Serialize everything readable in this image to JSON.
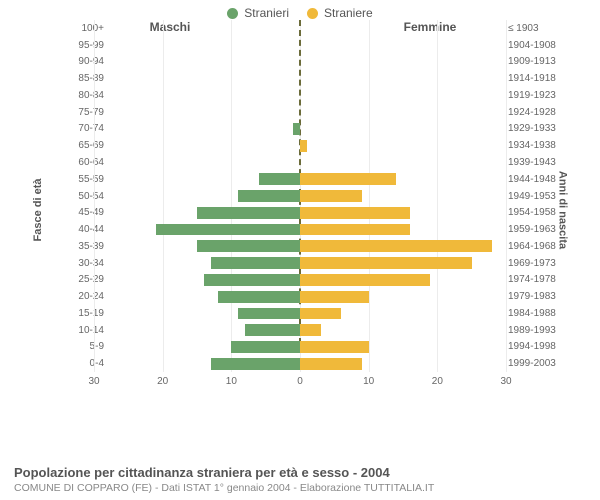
{
  "chart": {
    "type": "population-pyramid",
    "legend": [
      {
        "label": "Stranieri",
        "color": "#6aa36a"
      },
      {
        "label": "Straniere",
        "color": "#f0b93a"
      }
    ],
    "panel_title_left": "Maschi",
    "panel_title_right": "Femmine",
    "y_axis_title_left": "Fasce di età",
    "y_axis_title_right": "Anni di nascita",
    "x_max": 30,
    "x_ticks": [
      30,
      20,
      10,
      0,
      10,
      20,
      30
    ],
    "grid_color": "#ececec",
    "center_line_color": "#6b6b3a",
    "background_color": "#ffffff",
    "male_color": "#6aa36a",
    "female_color": "#f0b93a",
    "label_fontsize": 10,
    "title_fontsize": 13,
    "rows": [
      {
        "age": "100+",
        "birth": "≤ 1903",
        "m": 0,
        "f": 0
      },
      {
        "age": "95-99",
        "birth": "1904-1908",
        "m": 0,
        "f": 0
      },
      {
        "age": "90-94",
        "birth": "1909-1913",
        "m": 0,
        "f": 0
      },
      {
        "age": "85-89",
        "birth": "1914-1918",
        "m": 0,
        "f": 0
      },
      {
        "age": "80-84",
        "birth": "1919-1923",
        "m": 0,
        "f": 0
      },
      {
        "age": "75-79",
        "birth": "1924-1928",
        "m": 0,
        "f": 0
      },
      {
        "age": "70-74",
        "birth": "1929-1933",
        "m": 1,
        "f": 0
      },
      {
        "age": "65-69",
        "birth": "1934-1938",
        "m": 0,
        "f": 1
      },
      {
        "age": "60-64",
        "birth": "1939-1943",
        "m": 0,
        "f": 0
      },
      {
        "age": "55-59",
        "birth": "1944-1948",
        "m": 6,
        "f": 14
      },
      {
        "age": "50-54",
        "birth": "1949-1953",
        "m": 9,
        "f": 9
      },
      {
        "age": "45-49",
        "birth": "1954-1958",
        "m": 15,
        "f": 16
      },
      {
        "age": "40-44",
        "birth": "1959-1963",
        "m": 21,
        "f": 16
      },
      {
        "age": "35-39",
        "birth": "1964-1968",
        "m": 15,
        "f": 28
      },
      {
        "age": "30-34",
        "birth": "1969-1973",
        "m": 13,
        "f": 25
      },
      {
        "age": "25-29",
        "birth": "1974-1978",
        "m": 14,
        "f": 19
      },
      {
        "age": "20-24",
        "birth": "1979-1983",
        "m": 12,
        "f": 10
      },
      {
        "age": "15-19",
        "birth": "1984-1988",
        "m": 9,
        "f": 6
      },
      {
        "age": "10-14",
        "birth": "1989-1993",
        "m": 8,
        "f": 3
      },
      {
        "age": "5-9",
        "birth": "1994-1998",
        "m": 10,
        "f": 10
      },
      {
        "age": "0-4",
        "birth": "1999-2003",
        "m": 13,
        "f": 9
      }
    ]
  },
  "footer": {
    "title": "Popolazione per cittadinanza straniera per età e sesso - 2004",
    "subtitle": "COMUNE DI COPPARO (FE) - Dati ISTAT 1° gennaio 2004 - Elaborazione TUTTITALIA.IT"
  }
}
